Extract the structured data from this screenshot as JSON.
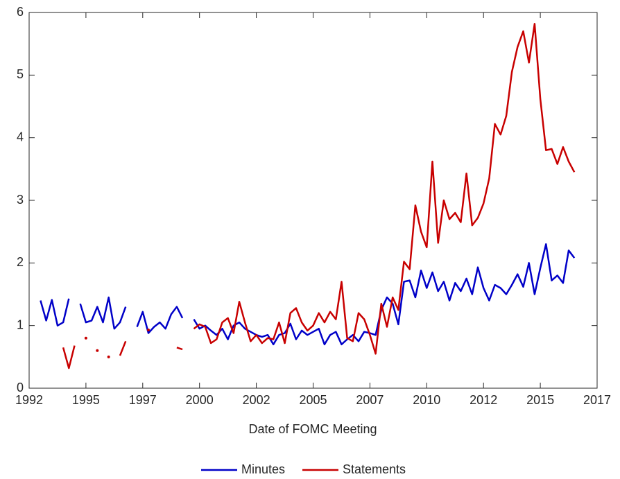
{
  "chart_data": {
    "type": "line",
    "xlabel": "Date of FOMC Meeting",
    "x": [
      1992.5,
      1992.75,
      1993,
      1993.25,
      1993.5,
      1993.75,
      1994,
      1994.25,
      1994.5,
      1994.75,
      1995,
      1995.25,
      1995.5,
      1995.75,
      1996,
      1996.25,
      1996.5,
      1996.75,
      1997,
      1997.25,
      1997.5,
      1997.75,
      1998,
      1998.25,
      1998.5,
      1998.75,
      1999,
      1999.25,
      1999.5,
      1999.75,
      2000,
      2000.25,
      2000.5,
      2000.75,
      2001,
      2001.25,
      2001.5,
      2001.75,
      2002,
      2002.25,
      2002.5,
      2002.75,
      2003,
      2003.25,
      2003.5,
      2003.75,
      2004,
      2004.25,
      2004.5,
      2004.75,
      2005,
      2005.25,
      2005.5,
      2005.75,
      2006,
      2006.25,
      2006.5,
      2006.75,
      2007,
      2007.25,
      2007.5,
      2007.75,
      2008,
      2008.25,
      2008.5,
      2008.75,
      2009,
      2009.25,
      2009.5,
      2009.75,
      2010,
      2010.25,
      2010.5,
      2010.75,
      2011,
      2011.25,
      2011.5,
      2011.75,
      2012,
      2012.25,
      2012.5,
      2012.75,
      2013,
      2013.25,
      2013.5,
      2013.75,
      2014,
      2014.25,
      2014.5,
      2014.75,
      2015,
      2015.25,
      2015.5,
      2015.75,
      2016
    ],
    "series": [
      {
        "name": "Minutes",
        "color": "#0000c8",
        "values": [
          1.4,
          1.08,
          1.41,
          1.0,
          1.05,
          1.43,
          null,
          1.35,
          1.05,
          1.08,
          1.3,
          1.05,
          1.45,
          0.95,
          1.05,
          1.3,
          null,
          0.98,
          1.22,
          0.88,
          0.98,
          1.05,
          0.95,
          1.18,
          1.3,
          1.12,
          null,
          1.1,
          0.95,
          1.0,
          0.92,
          0.85,
          0.95,
          0.78,
          1.0,
          1.05,
          0.95,
          0.9,
          0.85,
          0.82,
          0.85,
          0.7,
          0.85,
          0.88,
          1.03,
          0.78,
          0.92,
          0.85,
          0.9,
          0.95,
          0.7,
          0.85,
          0.9,
          0.7,
          0.78,
          0.85,
          0.75,
          0.9,
          0.88,
          0.85,
          1.25,
          1.45,
          1.35,
          1.02,
          1.7,
          1.72,
          1.45,
          1.88,
          1.6,
          1.85,
          1.55,
          1.7,
          1.4,
          1.68,
          1.55,
          1.75,
          1.5,
          1.93,
          1.6,
          1.4,
          1.65,
          1.6,
          1.5,
          1.65,
          1.82,
          1.62,
          2.0,
          1.5,
          1.92,
          2.3,
          1.72,
          1.8,
          1.68,
          2.2,
          2.08
        ]
      },
      {
        "name": "Statements",
        "color": "#c80000",
        "values": [
          null,
          null,
          null,
          null,
          0.65,
          0.32,
          0.68,
          null,
          0.8,
          null,
          0.6,
          null,
          0.5,
          null,
          0.52,
          0.75,
          null,
          null,
          null,
          0.93,
          null,
          null,
          null,
          null,
          0.65,
          0.62,
          null,
          0.95,
          1.02,
          0.98,
          0.72,
          0.78,
          1.05,
          1.12,
          0.88,
          1.38,
          1.05,
          0.75,
          0.85,
          0.72,
          0.8,
          0.78,
          1.05,
          0.72,
          1.2,
          1.28,
          1.05,
          0.92,
          1.0,
          1.2,
          1.05,
          1.22,
          1.1,
          1.7,
          0.8,
          0.75,
          1.2,
          1.1,
          0.85,
          0.55,
          1.35,
          0.98,
          1.45,
          1.25,
          2.02,
          1.9,
          2.92,
          2.5,
          2.25,
          3.62,
          2.32,
          3.0,
          2.7,
          2.8,
          2.65,
          3.43,
          2.6,
          2.72,
          2.95,
          3.35,
          4.22,
          4.05,
          4.35,
          5.05,
          5.45,
          5.7,
          5.2,
          5.82,
          4.62,
          3.8,
          3.82,
          3.58,
          3.85,
          3.62,
          3.45
        ]
      }
    ],
    "xlim": [
      1992,
      2017
    ],
    "xticks": [
      1992,
      {
        "value": 1994.5,
        "label": "1995"
      },
      1997,
      {
        "value": 1999.5,
        "label": "2000"
      },
      2002,
      {
        "value": 2004.5,
        "label": "2005"
      },
      2007,
      {
        "value": 2009.5,
        "label": "2010"
      },
      2012,
      {
        "value": 2014.5,
        "label": "2015"
      },
      2017
    ],
    "ylim": [
      0,
      6
    ],
    "yticks": [
      0,
      1,
      2,
      3,
      4,
      5,
      6
    ],
    "legend": "bottom"
  }
}
